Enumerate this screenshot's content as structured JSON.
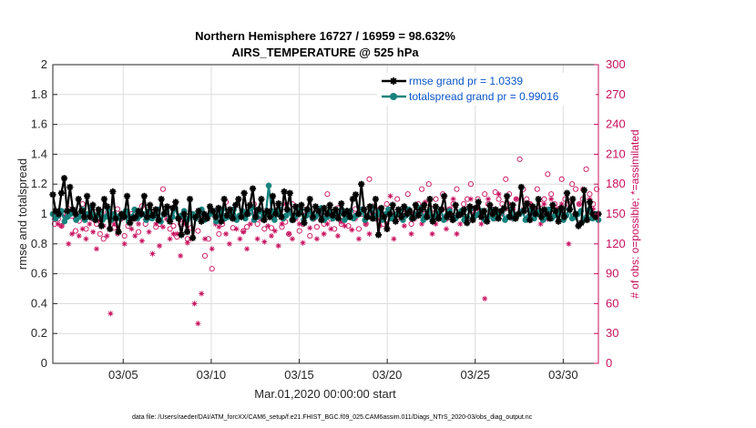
{
  "chart_data": {
    "type": "line",
    "title": "Northern Hemisphere 16727 / 16959 = 98.632%",
    "subtitle": "AIRS_TEMPERATURE @ 525 hPa",
    "xlabel": "Mar.01,2020 00:00:00 start",
    "ylabel": "rmse and totalspread",
    "ylabel_right": "# of obs: o=possible; *=assimilated",
    "footnote": "data file: /Users/raeder/DAI/ATM_forcXX/CAM6_setup/f.e21.FHIST_BGC.f09_025.CAM6assim.011/Diags_NTrS_2020-03/obs_diag_output.nc",
    "xlim": [
      1.0,
      32.0
    ],
    "ylim": [
      0,
      2
    ],
    "ylim_right": [
      0,
      300
    ],
    "x_ticks": [
      {
        "value": 5,
        "label": "03/05"
      },
      {
        "value": 10,
        "label": "03/10"
      },
      {
        "value": 15,
        "label": "03/15"
      },
      {
        "value": 20,
        "label": "03/20"
      },
      {
        "value": 25,
        "label": "03/25"
      },
      {
        "value": 30,
        "label": "03/30"
      }
    ],
    "y_ticks": [
      0,
      0.2,
      0.4,
      0.6,
      0.8,
      1,
      1.2,
      1.4,
      1.6,
      1.8,
      2
    ],
    "y_ticks_right": [
      0,
      30,
      60,
      90,
      120,
      150,
      180,
      210,
      240,
      270,
      300
    ],
    "series": [
      {
        "name": "rmse",
        "legend": "rmse grand pr = 1.0339",
        "color": "#000000",
        "marker": "star",
        "values": [
          1.13,
          1.02,
          1.0,
          1.14,
          1.24,
          1.02,
          1.18,
          1.03,
          1.0,
          1.1,
          1.02,
          0.98,
          1.12,
          0.98,
          1.06,
          0.96,
          1.03,
          0.92,
          1.1,
          1.05,
          0.9,
          1.15,
          0.97,
          0.88,
          1.0,
          0.98,
          1.12,
          0.94,
          0.97,
          0.98,
          1.02,
          1.0,
          1.12,
          0.98,
          1.06,
          0.99,
          1.03,
          0.96,
          1.1,
          1.0,
          1.05,
          0.95,
          1.04,
          1.08,
          0.97,
          0.86,
          1.0,
          0.88,
          1.1,
          0.84,
          0.98,
          1.02,
          0.95,
          1.0,
          0.97,
          1.05,
          1.02,
          0.98,
          1.04,
          0.95,
          1.1,
          0.99,
          1.03,
          0.97,
          1.06,
          1.1,
          0.98,
          1.14,
          1.0,
          1.06,
          1.17,
          0.98,
          1.03,
          1.1,
          0.96,
          1.02,
          0.98,
          1.12,
          1.0,
          1.07,
          0.98,
          1.15,
          1.03,
          1.14,
          0.96,
          1.05,
          1.0,
          1.06,
          0.94,
          1.03,
          1.1,
          0.98,
          1.05,
          1.02,
          0.96,
          1.04,
          1.0,
          1.06,
          0.99,
          1.03,
          0.97,
          1.07,
          1.0,
          1.02,
          0.98,
          1.1,
          1.13,
          1.0,
          1.2,
          1.03,
          0.98,
          1.05,
          0.97,
          1.1,
          0.86,
          1.04,
          0.98,
          0.9,
          1.0,
          1.06,
          0.95,
          1.03,
          0.98,
          1.05,
          1.0,
          1.02,
          0.97,
          1.06,
          0.99,
          1.03,
          1.06,
          0.98,
          1.1,
          0.95,
          1.05,
          0.97,
          1.03,
          1.12,
          0.98,
          1.0,
          0.96,
          1.06,
          0.99,
          1.0,
          1.03,
          0.94,
          1.05,
          0.96,
          1.04,
          1.08,
          0.98,
          1.02,
          0.95,
          1.06,
          1.0,
          1.03,
          0.97,
          1.02,
          1.04,
          1.12,
          0.98,
          1.06,
          0.97,
          1.0,
          1.18,
          1.02,
          1.07,
          0.96,
          1.05,
          1.0,
          1.1,
          0.98,
          1.03,
          1.0,
          0.97,
          1.06,
          1.02,
          0.95,
          1.04,
          0.98,
          1.14,
          1.03,
          1.1,
          1.0,
          0.92,
          0.94,
          1.16,
          0.96,
          1.08,
          1.0,
          0.98,
          1.0
        ]
      },
      {
        "name": "totalspread",
        "legend": "totalspread grand pr = 0.99016",
        "color": "#16827d",
        "marker": "dot",
        "values": [
          1.0,
          0.97,
          0.99,
          1.02,
          0.95,
          0.98,
          1.0,
          1.02,
          0.96,
          0.98,
          1.03,
          0.96,
          1.0,
          1.04,
          0.97,
          0.99,
          1.02,
          0.96,
          0.98,
          1.03,
          0.96,
          1.0,
          0.98,
          0.97,
          1.0,
          1.02,
          0.95,
          0.98,
          1.03,
          0.97,
          0.99,
          1.0,
          0.96,
          1.02,
          0.97,
          0.99,
          1.03,
          0.95,
          1.0,
          1.02,
          0.96,
          0.98,
          1.04,
          0.97,
          0.99,
          1.02,
          0.96,
          0.98,
          1.0,
          0.97,
          0.99,
          1.03,
          0.96,
          0.98,
          1.0,
          1.02,
          0.95,
          0.99,
          1.03,
          0.97,
          0.98,
          1.0,
          1.03,
          0.96,
          0.99,
          1.02,
          0.97,
          1.0,
          1.04,
          0.96,
          0.98,
          1.02,
          0.97,
          1.0,
          1.19,
          1.02,
          0.96,
          1.0,
          1.03,
          0.97,
          0.99,
          1.02,
          0.96,
          0.98,
          1.0,
          1.03,
          0.96,
          0.99,
          1.02,
          0.97,
          0.98,
          1.0,
          1.04,
          0.96,
          0.98,
          1.02,
          0.97,
          0.99,
          1.0,
          1.03,
          0.96,
          0.98,
          1.02,
          0.97,
          0.99,
          1.0,
          1.03,
          0.96,
          0.98,
          1.05,
          0.97,
          0.99,
          1.02,
          0.96,
          1.0,
          1.03,
          0.97,
          0.98,
          1.0,
          1.02,
          0.96,
          0.99,
          1.03,
          0.97,
          0.98,
          1.0,
          1.04,
          0.96,
          0.99,
          1.02,
          0.97,
          0.98,
          1.0,
          1.03,
          0.96,
          0.99,
          1.02,
          0.98,
          0.97,
          1.0,
          1.02,
          0.96,
          0.98,
          1.03,
          0.97,
          0.99,
          1.0,
          1.02,
          0.96,
          0.98,
          1.03,
          0.97,
          0.99,
          1.0,
          1.02,
          0.96,
          0.98,
          1.03,
          0.97,
          0.99,
          1.0,
          1.02,
          0.96,
          0.98,
          1.03,
          0.97,
          1.0,
          1.02,
          0.96,
          0.98,
          1.03,
          0.97,
          0.99,
          1.0,
          1.02,
          0.96,
          0.99,
          1.03,
          0.97,
          0.98,
          1.0,
          1.02,
          0.96,
          0.98,
          1.03,
          0.97,
          1.0,
          0.96
        ]
      }
    ],
    "obs_series": [
      {
        "name": "possible",
        "marker": "circle",
        "color": "#c8105e",
        "values": [
          140,
          145,
          138,
          150,
          155,
          148,
          133,
          143,
          160,
          135,
          150,
          145,
          140,
          130,
          125,
          151,
          147,
          136,
          155,
          145,
          128,
          138,
          150,
          145,
          132,
          158,
          140,
          146,
          152,
          137,
          140,
          175,
          150,
          135,
          138,
          127,
          140,
          145,
          125,
          136,
          148,
          133,
          145,
          108,
          125,
          95,
          150,
          130,
          140,
          162,
          150,
          136,
          145,
          148,
          133,
          137,
          153,
          160,
          140,
          145,
          135,
          150,
          136,
          148,
          155,
          137,
          142,
          130,
          160,
          148,
          133,
          140,
          150,
          128,
          145,
          137,
          152,
          140,
          170,
          145,
          135,
          156,
          140,
          145,
          138,
          150,
          155,
          135,
          150,
          140,
          185,
          150,
          145,
          155,
          140,
          160,
          150,
          145,
          165,
          150,
          155,
          170,
          140,
          150,
          160,
          175,
          150,
          180,
          155,
          165,
          150,
          170,
          145,
          155,
          160,
          175,
          150,
          160,
          165,
          180,
          155,
          165,
          150,
          170,
          160,
          155,
          172,
          165,
          160,
          185,
          170,
          155,
          165,
          205,
          175,
          165,
          160,
          150,
          175,
          160,
          165,
          190,
          170,
          160,
          155,
          185,
          165,
          160,
          180,
          175,
          160,
          165,
          195,
          170,
          160,
          175
        ]
      },
      {
        "name": "assimilated",
        "marker": "star",
        "color": "#c8105e",
        "values": [
          145,
          140,
          138,
          148,
          120,
          130,
          145,
          128,
          135,
          125,
          140,
          132,
          115,
          143,
          138,
          128,
          50,
          140,
          130,
          145,
          120,
          150,
          135,
          128,
          140,
          123,
          145,
          132,
          110,
          140,
          118,
          137,
          145,
          125,
          130,
          130,
          108,
          140,
          121,
          125,
          60,
          40,
          70,
          125,
          148,
          115,
          140,
          137,
          155,
          130,
          120,
          145,
          135,
          125,
          132,
          115,
          140,
          150,
          125,
          145,
          122,
          138,
          128,
          133,
          118,
          140,
          160,
          130,
          125,
          145,
          140,
          121,
          155,
          136,
          145,
          125,
          150,
          130,
          140,
          135,
          150,
          128,
          142,
          138,
          148,
          134,
          145,
          125,
          155,
          140,
          130,
          158,
          145,
          138,
          150,
          140,
          168,
          125,
          150,
          145,
          138,
          150,
          130,
          145,
          155,
          140,
          162,
          150,
          130,
          140,
          145,
          155,
          135,
          155,
          165,
          130,
          140,
          155,
          145,
          165,
          150,
          155,
          140,
          65,
          165,
          150,
          145,
          170,
          150,
          155,
          160,
          145,
          165,
          150,
          155,
          145,
          160,
          150,
          155,
          140,
          160,
          145,
          165,
          150,
          155,
          160,
          150,
          120,
          165,
          150,
          160,
          175,
          145,
          165,
          155,
          150
        ]
      }
    ]
  }
}
